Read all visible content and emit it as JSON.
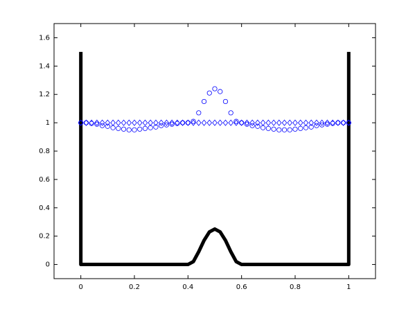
{
  "chart_data": {
    "type": "line",
    "xlim": [
      -0.1,
      1.1
    ],
    "ylim": [
      -0.1,
      1.7
    ],
    "xticks": [
      0,
      0.2,
      0.4,
      0.6,
      0.8,
      1
    ],
    "yticks": [
      0,
      0.2,
      0.4,
      0.6,
      0.8,
      1,
      1.2,
      1.4,
      1.6
    ],
    "grid": false,
    "box": true,
    "x": [
      0,
      0.02,
      0.04,
      0.06,
      0.08,
      0.1,
      0.12,
      0.14,
      0.16,
      0.18,
      0.2,
      0.22,
      0.24,
      0.26,
      0.28,
      0.3,
      0.32,
      0.34,
      0.36,
      0.38,
      0.4,
      0.42,
      0.44,
      0.46,
      0.48,
      0.5,
      0.52,
      0.54,
      0.56,
      0.58,
      0.6,
      0.62,
      0.64,
      0.66,
      0.68,
      0.7,
      0.72,
      0.74,
      0.76,
      0.78,
      0.8,
      0.82,
      0.84,
      0.86,
      0.88,
      0.9,
      0.92,
      0.94,
      0.96,
      0.98,
      1
    ],
    "series": [
      {
        "color": "#000000",
        "marker": "none",
        "linewidth": 5,
        "x": [
          0,
          0,
          0.4,
          0.42,
          0.44,
          0.46,
          0.48,
          0.5,
          0.52,
          0.54,
          0.56,
          0.58,
          0.6,
          1,
          1
        ],
        "values": [
          1.5,
          0,
          0,
          0.02,
          0.09,
          0.17,
          0.23,
          0.25,
          0.23,
          0.17,
          0.09,
          0.02,
          0,
          0,
          1.5
        ]
      },
      {
        "color": "#0000ff",
        "marker": "o",
        "linewidth": 0,
        "values": [
          1.0,
          1.0,
          0.995,
          0.99,
          0.98,
          0.975,
          0.965,
          0.96,
          0.955,
          0.95,
          0.95,
          0.955,
          0.96,
          0.965,
          0.97,
          0.98,
          0.985,
          0.99,
          0.995,
          1.0,
          1.0,
          1.01,
          1.07,
          1.15,
          1.21,
          1.24,
          1.22,
          1.15,
          1.07,
          1.01,
          1.0,
          0.99,
          0.98,
          0.975,
          0.965,
          0.96,
          0.955,
          0.95,
          0.95,
          0.95,
          0.955,
          0.96,
          0.965,
          0.97,
          0.98,
          0.985,
          0.99,
          0.995,
          1.0,
          1.0,
          1.0
        ]
      },
      {
        "color": "#0000ff",
        "marker": "d",
        "linewidth": 0,
        "values": [
          1,
          1,
          1,
          1,
          1,
          1,
          1,
          1,
          1,
          1,
          1,
          1,
          1,
          1,
          1,
          1,
          1,
          1,
          1,
          1,
          1,
          1,
          1,
          1,
          1,
          1,
          1,
          1,
          1,
          1,
          1,
          1,
          1,
          1,
          1,
          1,
          1,
          1,
          1,
          1,
          1,
          1,
          1,
          1,
          1,
          1,
          1,
          1,
          1,
          1,
          1
        ]
      }
    ]
  }
}
